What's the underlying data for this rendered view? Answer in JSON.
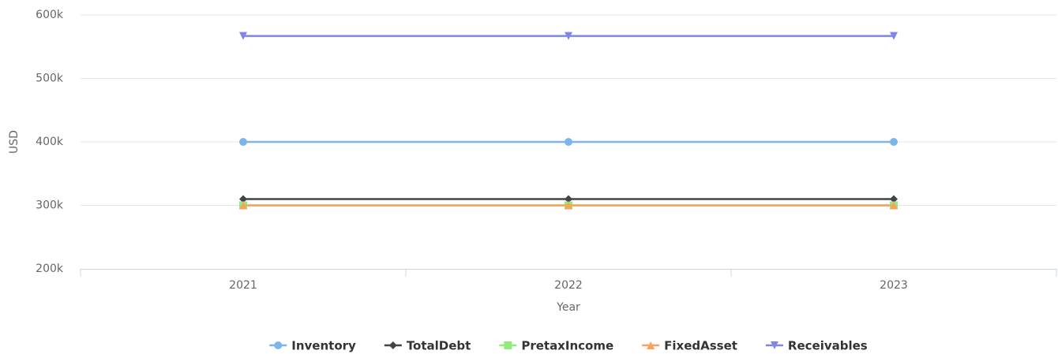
{
  "chart_data": {
    "type": "line",
    "x_label": "Year",
    "y_label": "USD",
    "categories": [
      "2021",
      "2022",
      "2023"
    ],
    "series": [
      {
        "name": "Inventory",
        "color": "#7cb5ec",
        "marker": "circle",
        "values": [
          400000,
          400000,
          400000
        ]
      },
      {
        "name": "TotalDebt",
        "color": "#434348",
        "marker": "diamond",
        "values": [
          310000,
          310000,
          310000
        ]
      },
      {
        "name": "PretaxIncome",
        "color": "#90ed7d",
        "marker": "square",
        "values": [
          300000,
          300000,
          300000
        ]
      },
      {
        "name": "FixedAsset",
        "color": "#f7a35c",
        "marker": "triangle",
        "values": [
          300000,
          300000,
          300000
        ]
      },
      {
        "name": "Receivables",
        "color": "#8085e9",
        "marker": "triangle-down",
        "values": [
          567000,
          567000,
          567000
        ]
      }
    ],
    "ylim": [
      200000,
      600000
    ],
    "yticks": [
      {
        "value": 200000,
        "label": "200k"
      },
      {
        "value": 300000,
        "label": "300k"
      },
      {
        "value": 400000,
        "label": "400k"
      },
      {
        "value": 500000,
        "label": "500k"
      },
      {
        "value": 600000,
        "label": "600k"
      }
    ],
    "grid": true,
    "legend": "bottom"
  }
}
